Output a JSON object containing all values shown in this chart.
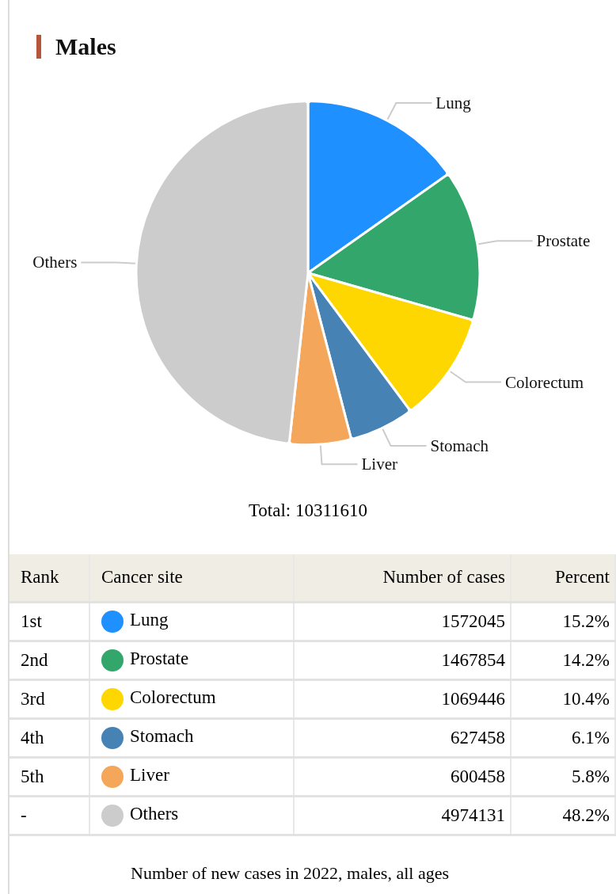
{
  "chart_data": {
    "type": "pie",
    "title": "Males",
    "categories": [
      "Lung",
      "Prostate",
      "Colorectum",
      "Stomach",
      "Liver",
      "Others"
    ],
    "values": [
      15.2,
      14.2,
      10.4,
      6.1,
      5.8,
      48.2
    ],
    "colors": [
      "#1e90ff",
      "#33a66c",
      "#ffd700",
      "#4682b4",
      "#f4a65a",
      "#cccccc"
    ],
    "value_labels": [
      "15.2%",
      "14.2%",
      "10.4%",
      "6.1%",
      "5.8%",
      "48.2%"
    ],
    "annotations": [
      "Total: 10311610",
      "Rank",
      "Cancer site",
      "Number of cases",
      "Percent",
      "1st",
      "2nd",
      "3rd",
      "4th",
      "5th",
      "-",
      "Number of new cases in 2022, males, all ages",
      "1572045",
      "1467854",
      "1069446",
      "627458",
      "600458",
      "4974131"
    ],
    "legend": "bottom"
  }
}
